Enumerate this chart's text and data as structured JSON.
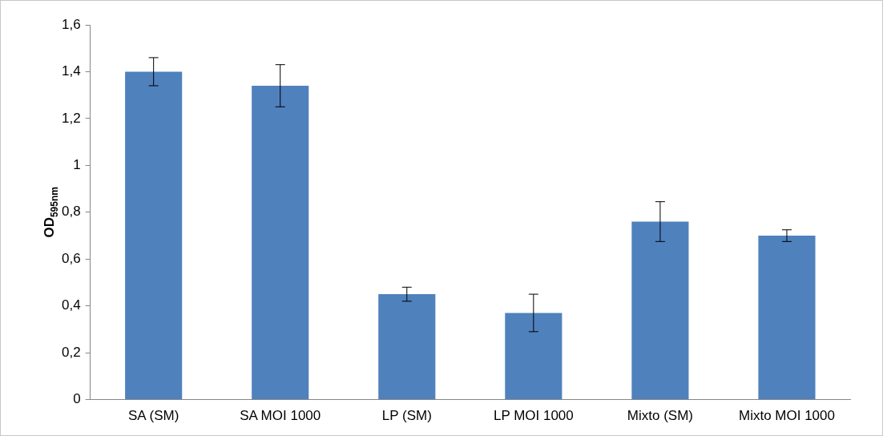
{
  "chart_data": {
    "type": "bar",
    "ylabel": "OD$_{595nm}$",
    "categories": [
      "SA (SM)",
      "SA MOI 1000",
      "LP (SM)",
      "LP MOI 1000",
      "Mixto (SM)",
      "Mixto MOI 1000"
    ],
    "values": [
      1.4,
      1.34,
      0.45,
      0.37,
      0.76,
      0.7
    ],
    "errors": [
      0.06,
      0.09,
      0.03,
      0.08,
      0.085,
      0.025
    ],
    "color": "#4f81bd",
    "ylim": [
      0,
      1.6
    ],
    "yticks": [
      0,
      {
        "value": 0.2,
        "label": "0,2"
      },
      {
        "value": 0.4,
        "label": "0,4"
      },
      {
        "value": 0.6,
        "label": "0,6"
      },
      {
        "value": 0.8,
        "label": "0,8"
      },
      1,
      {
        "value": 1.2,
        "label": "1,2"
      },
      {
        "value": 1.4,
        "label": "1,4"
      },
      {
        "value": 1.6,
        "label": "1,6"
      }
    ],
    "grid": false,
    "legend": false
  }
}
